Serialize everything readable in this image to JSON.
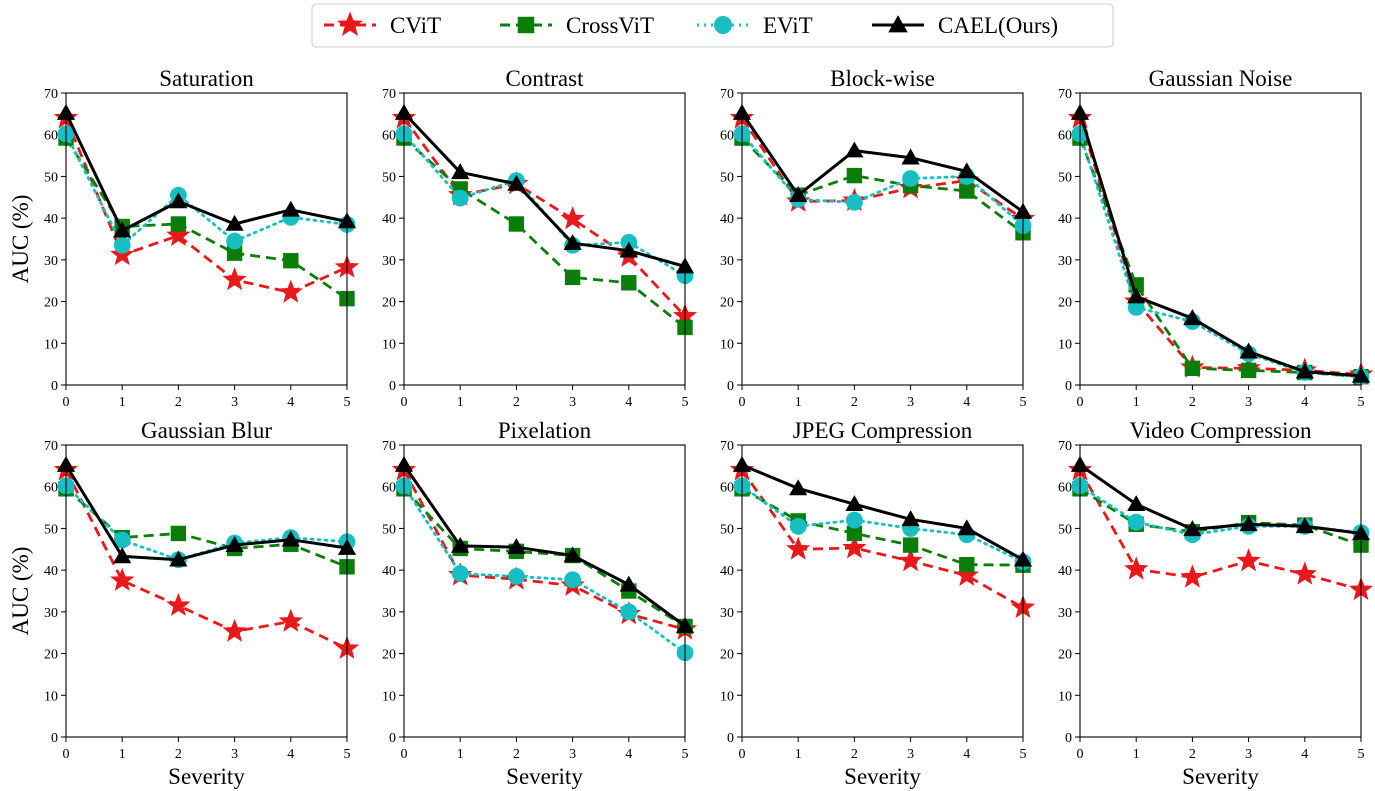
{
  "legend": [
    {
      "name": "CViT",
      "color": "#e8191a",
      "marker": "star",
      "dash": "10,6"
    },
    {
      "name": "CrossViT",
      "color": "#0a7d0a",
      "marker": "square",
      "dash": "10,6"
    },
    {
      "name": "EViT",
      "color": "#17bfc2",
      "marker": "circle",
      "dash": "2,5"
    },
    {
      "name": "CAEL(Ours)",
      "color": "#000000",
      "marker": "triangle",
      "dash": ""
    }
  ],
  "chart_data": [
    {
      "type": "line",
      "title": "Saturation",
      "xlabel": "",
      "ylabel": "AUC (%)",
      "x": [
        0,
        1,
        2,
        3,
        4,
        5
      ],
      "xlim": [
        0,
        5
      ],
      "ylim": [
        0,
        70
      ],
      "grid": false,
      "series": [
        {
          "name": "CViT",
          "values": [
            64,
            31.2,
            35.8,
            25.2,
            22.2,
            28.2
          ]
        },
        {
          "name": "CrossViT",
          "values": [
            59.2,
            38,
            38.6,
            31.6,
            29.8,
            20.7
          ]
        },
        {
          "name": "EViT",
          "values": [
            60.2,
            33.5,
            45.5,
            34.5,
            40.2,
            38.5
          ]
        },
        {
          "name": "CAEL(Ours)",
          "values": [
            65.2,
            37,
            44,
            38.6,
            42,
            39.2
          ]
        }
      ]
    },
    {
      "type": "line",
      "title": "Contrast",
      "xlabel": "",
      "ylabel": "",
      "x": [
        0,
        1,
        2,
        3,
        4,
        5
      ],
      "xlim": [
        0,
        5
      ],
      "ylim": [
        0,
        70
      ],
      "grid": false,
      "series": [
        {
          "name": "CViT",
          "values": [
            64,
            45.5,
            48.2,
            39.8,
            30.8,
            16.5
          ]
        },
        {
          "name": "CrossViT",
          "values": [
            59.2,
            47,
            38.6,
            25.8,
            24.5,
            13.8
          ]
        },
        {
          "name": "EViT",
          "values": [
            60.2,
            44.8,
            49,
            33.5,
            34.2,
            26.2
          ]
        },
        {
          "name": "CAEL(Ours)",
          "values": [
            65.2,
            51,
            48.2,
            34,
            32.2,
            28.4
          ]
        }
      ]
    },
    {
      "type": "line",
      "title": "Block-wise",
      "xlabel": "",
      "ylabel": "",
      "x": [
        0,
        1,
        2,
        3,
        4,
        5
      ],
      "xlim": [
        0,
        5
      ],
      "ylim": [
        0,
        70
      ],
      "grid": false,
      "series": [
        {
          "name": "CViT",
          "values": [
            64,
            44,
            44.2,
            47.2,
            49,
            39.8
          ]
        },
        {
          "name": "CrossViT",
          "values": [
            59.2,
            45.5,
            50.2,
            47.8,
            46.5,
            36.5
          ]
        },
        {
          "name": "EViT",
          "values": [
            60.2,
            44.5,
            43.8,
            49.5,
            50,
            38.2
          ]
        },
        {
          "name": "CAEL(Ours)",
          "values": [
            65.2,
            45.5,
            56.2,
            54.5,
            51.2,
            41.5
          ]
        }
      ]
    },
    {
      "type": "line",
      "title": "Gaussian Noise",
      "xlabel": "",
      "ylabel": "",
      "x": [
        0,
        1,
        2,
        3,
        4,
        5
      ],
      "xlim": [
        0,
        5
      ],
      "ylim": [
        0,
        70
      ],
      "grid": false,
      "series": [
        {
          "name": "CViT",
          "values": [
            64,
            20,
            4.2,
            4,
            3.5,
            2.5
          ]
        },
        {
          "name": "CrossViT",
          "values": [
            59.2,
            24,
            4,
            3.5,
            3,
            2
          ]
        },
        {
          "name": "EViT",
          "values": [
            60.2,
            18.6,
            15.2,
            7.5,
            3,
            2
          ]
        },
        {
          "name": "CAEL(Ours)",
          "values": [
            65.2,
            21.2,
            16,
            8,
            3.2,
            2.2
          ]
        }
      ]
    },
    {
      "type": "line",
      "title": "Gaussian Blur",
      "xlabel": "Severity",
      "ylabel": "AUC (%)",
      "x": [
        0,
        1,
        2,
        3,
        4,
        5
      ],
      "xlim": [
        0,
        5
      ],
      "ylim": [
        0,
        70
      ],
      "grid": false,
      "series": [
        {
          "name": "CViT",
          "values": [
            64,
            37.5,
            31.5,
            25.3,
            27.7,
            21.2
          ]
        },
        {
          "name": "CrossViT",
          "values": [
            59.5,
            47.8,
            48.8,
            45.2,
            46.2,
            40.8
          ]
        },
        {
          "name": "EViT",
          "values": [
            60.2,
            47.2,
            42.5,
            46.5,
            47.8,
            46.8
          ]
        },
        {
          "name": "CAEL(Ours)",
          "values": [
            65.2,
            43.3,
            42.5,
            46,
            47.3,
            45.3
          ]
        }
      ]
    },
    {
      "type": "line",
      "title": "Pixelation",
      "xlabel": "Severity",
      "ylabel": "",
      "x": [
        0,
        1,
        2,
        3,
        4,
        5
      ],
      "xlim": [
        0,
        5
      ],
      "ylim": [
        0,
        70
      ],
      "grid": false,
      "series": [
        {
          "name": "CViT",
          "values": [
            64,
            38.8,
            37.8,
            36.3,
            29.5,
            25.8
          ]
        },
        {
          "name": "CrossViT",
          "values": [
            59.5,
            45.2,
            44.5,
            43.5,
            35,
            26.5
          ]
        },
        {
          "name": "EViT",
          "values": [
            60.2,
            39.2,
            38.5,
            37.7,
            30,
            20.2
          ]
        },
        {
          "name": "CAEL(Ours)",
          "values": [
            65.2,
            45.8,
            45.5,
            43.5,
            36.5,
            26.6
          ]
        }
      ]
    },
    {
      "type": "line",
      "title": "JPEG Compression",
      "xlabel": "Severity",
      "ylabel": "",
      "x": [
        0,
        1,
        2,
        3,
        4,
        5
      ],
      "xlim": [
        0,
        5
      ],
      "ylim": [
        0,
        70
      ],
      "grid": false,
      "series": [
        {
          "name": "CViT",
          "values": [
            64,
            45,
            45.3,
            42.2,
            38.7,
            31
          ]
        },
        {
          "name": "CrossViT",
          "values": [
            59.5,
            51.8,
            48.8,
            46,
            41.3,
            41.2
          ]
        },
        {
          "name": "EViT",
          "values": [
            60.2,
            50.5,
            52,
            50,
            48.5,
            42
          ]
        },
        {
          "name": "CAEL(Ours)",
          "values": [
            65.2,
            59.6,
            55.8,
            52.2,
            50,
            42.5
          ]
        }
      ]
    },
    {
      "type": "line",
      "title": "Video Compression",
      "xlabel": "Severity",
      "ylabel": "",
      "x": [
        0,
        1,
        2,
        3,
        4,
        5
      ],
      "xlim": [
        0,
        5
      ],
      "ylim": [
        0,
        70
      ],
      "grid": false,
      "series": [
        {
          "name": "CViT",
          "values": [
            64,
            40.2,
            38.3,
            42.2,
            39,
            35.3
          ]
        },
        {
          "name": "CrossViT",
          "values": [
            59.5,
            51,
            49.2,
            51.4,
            50.8,
            46
          ]
        },
        {
          "name": "EViT",
          "values": [
            60.2,
            51.5,
            48.5,
            50.5,
            50.5,
            49
          ]
        },
        {
          "name": "CAEL(Ours)",
          "values": [
            65.2,
            55.8,
            49.8,
            51,
            50.5,
            48.8
          ]
        }
      ]
    }
  ]
}
